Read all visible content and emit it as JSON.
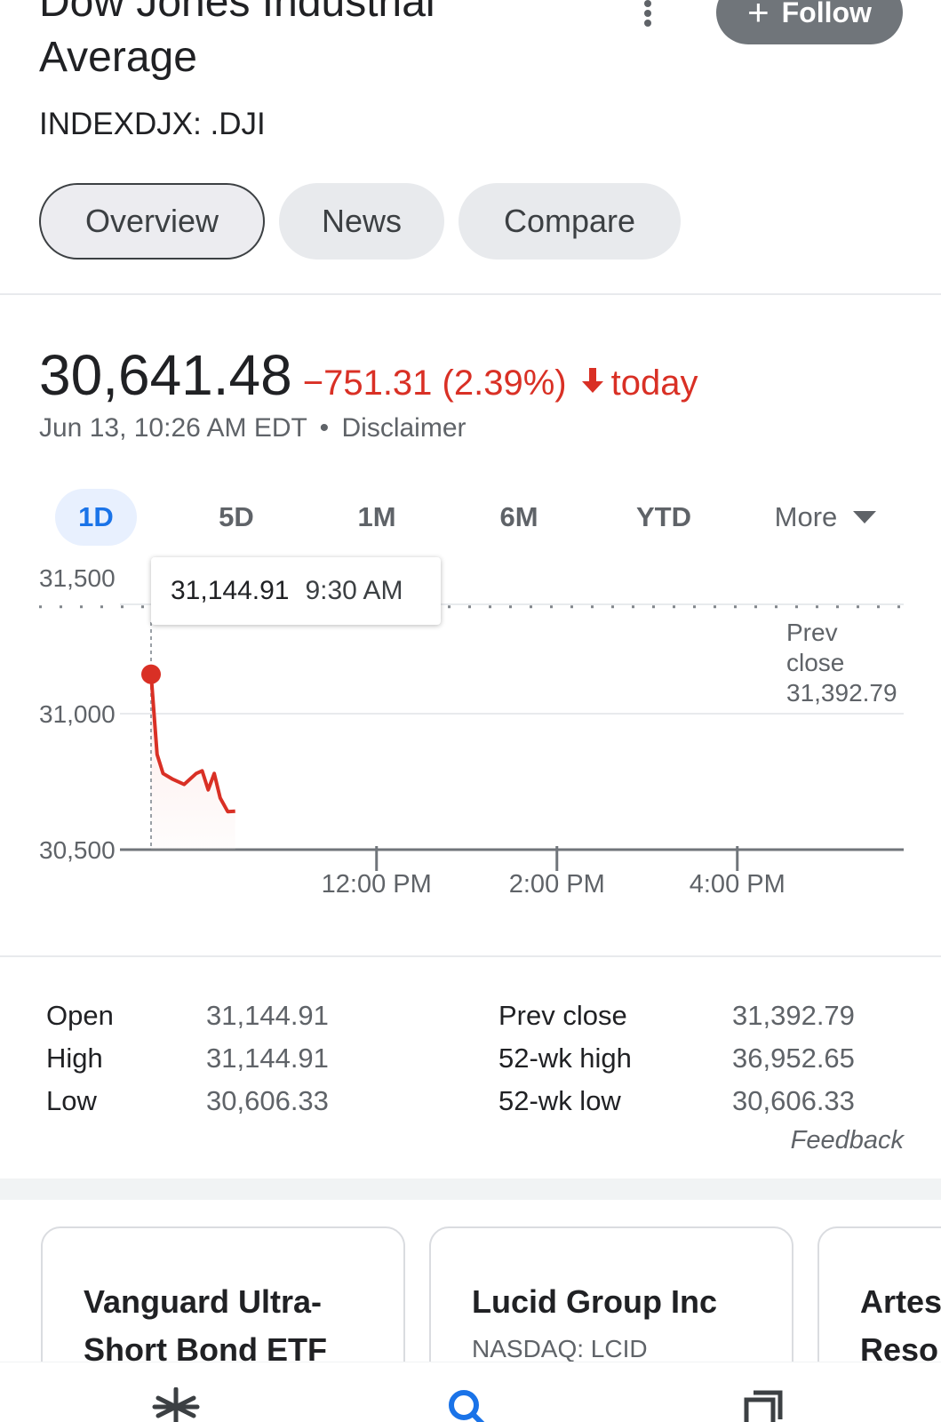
{
  "header": {
    "title": "Dow Jones Industrial Average",
    "ticker": "INDEXDJX: .DJI",
    "follow_label": "Follow",
    "follow_icon": "plus-icon",
    "more_icon": "kebab-menu-icon"
  },
  "tabs": [
    {
      "label": "Overview",
      "active": true
    },
    {
      "label": "News",
      "active": false
    },
    {
      "label": "Compare",
      "active": false
    }
  ],
  "quote": {
    "price": "30,641.48",
    "change": "−751.31 (2.39%)",
    "direction_icon": "arrow-down-icon",
    "period": "today",
    "timestamp": "Jun 13, 10:26 AM EDT",
    "separator": "•",
    "disclaimer": "Disclaimer"
  },
  "ranges": [
    {
      "label": "1D",
      "active": true
    },
    {
      "label": "5D",
      "active": false
    },
    {
      "label": "1M",
      "active": false
    },
    {
      "label": "6M",
      "active": false
    },
    {
      "label": "YTD",
      "active": false
    },
    {
      "label": "More",
      "active": false
    }
  ],
  "tooltip": {
    "value": "31,144.91",
    "time": "9:30 AM"
  },
  "prev_close_label": {
    "line1": "Prev",
    "line2": "close",
    "value": "31,392.79"
  },
  "chart_data": {
    "type": "line",
    "y_ticks": [
      "31,500",
      "31,000",
      "30,500"
    ],
    "x_ticks": [
      "12:00 PM",
      "2:00 PM",
      "4:00 PM"
    ],
    "ylim": [
      30500,
      31500
    ],
    "prev_close": 31392.79,
    "series": [
      {
        "x": [
          "9:30",
          "9:34",
          "9:38",
          "9:44",
          "9:52",
          "10:00",
          "10:04",
          "10:08",
          "10:12",
          "10:16",
          "10:21",
          "10:26"
        ],
        "values": [
          31144.91,
          30850,
          30780,
          30760,
          30740,
          30780,
          30790,
          30720,
          30780,
          30690,
          30640,
          30641.48
        ]
      }
    ],
    "colors": {
      "line": "#d93025",
      "grid": "#e8eaed",
      "axis": "#70757a"
    }
  },
  "stats": {
    "left": [
      {
        "label": "Open",
        "value": "31,144.91"
      },
      {
        "label": "High",
        "value": "31,144.91"
      },
      {
        "label": "Low",
        "value": "30,606.33"
      }
    ],
    "right": [
      {
        "label": "Prev close",
        "value": "31,392.79"
      },
      {
        "label": "52-wk high",
        "value": "36,952.65"
      },
      {
        "label": "52-wk low",
        "value": "30,606.33"
      }
    ],
    "feedback": "Feedback"
  },
  "related": [
    {
      "name": "Vanguard Ultra-Short Bond ETF",
      "ticker": ""
    },
    {
      "name": "Lucid Group Inc",
      "ticker": "NASDAQ: LCID"
    },
    {
      "name": "Artes Reso",
      "ticker": ""
    }
  ],
  "bottom_nav": [
    {
      "icon": "discover-asterisk-icon"
    },
    {
      "icon": "search-icon"
    },
    {
      "icon": "tabs-icon"
    }
  ],
  "colors": {
    "negative": "#d93025",
    "accent": "#1a73e8",
    "follow_bg": "#70757a"
  }
}
